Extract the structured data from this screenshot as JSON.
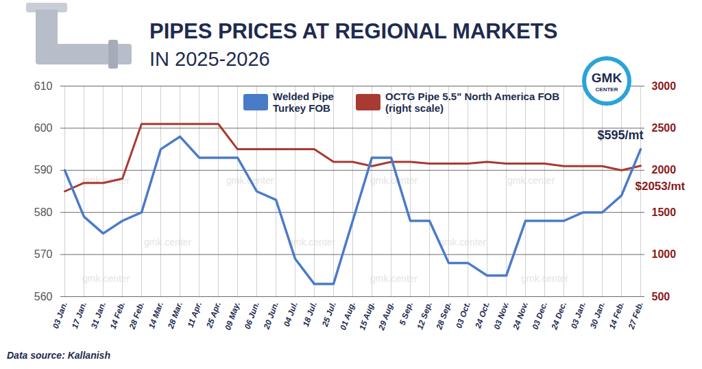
{
  "chart_data": {
    "type": "line",
    "title": "PIPES PRICES AT REGIONAL MARKETS",
    "subtitle": "IN 2025-2026",
    "source": "Data source: Kallanish",
    "logo": [
      "GMK",
      "CENTER"
    ],
    "watermark": "gmk.center",
    "categories": [
      "03 Jan.",
      "17 Jan.",
      "31 Jan.",
      "14 Feb.",
      "28 Feb.",
      "14 Mar.",
      "28 Mar.",
      "11 Apr.",
      "25 Apr.",
      "09 May.",
      "06 Jun.",
      "20 Jun.",
      "04 Jul.",
      "18 Jul.",
      "25 Jul.",
      "01 Aug.",
      "15 Aug.",
      "29 Aug.",
      "5 Sep.",
      "12 Sep.",
      "28 Sep.",
      "03 Oct.",
      "24 Oct.",
      "03 Nov.",
      "24 Nov.",
      "03 Dec.",
      "24 Dec.",
      "03 Jan.",
      "30 Jan.",
      "14 Feb.",
      "27 Feb."
    ],
    "series": [
      {
        "name": "Welded Pipe Turkey FOB",
        "color": "#4a7bc8",
        "values": [
          590,
          579,
          575,
          578,
          580,
          595,
          598,
          593,
          593,
          593,
          585,
          583,
          569,
          563,
          563,
          578,
          593,
          593,
          578,
          578,
          568,
          568,
          565,
          565,
          578,
          578,
          578,
          580,
          580,
          584,
          595
        ]
      },
      {
        "name": "OCTG Pipe 5.5\" North America FOB (right scale)",
        "color": "#a83a32",
        "axis": "y2",
        "values": [
          1750,
          1850,
          1850,
          1900,
          2550,
          2550,
          2550,
          2550,
          2550,
          2250,
          2250,
          2250,
          2250,
          2250,
          2100,
          2100,
          2050,
          2100,
          2100,
          2080,
          2080,
          2080,
          2100,
          2080,
          2080,
          2080,
          2050,
          2050,
          2050,
          2000,
          2053
        ]
      }
    ],
    "annotations": [
      {
        "text": "$595/mt",
        "series": "Welded Pipe Turkey FOB"
      },
      {
        "text": "$2053/mt",
        "series": "OCTG Pipe 5.5\" North America FOB (right scale)"
      }
    ],
    "ylim": [
      560,
      610
    ],
    "yticks": [
      560,
      570,
      580,
      590,
      600,
      610
    ],
    "y2lim": [
      500,
      3000
    ],
    "y2ticks": [
      500,
      1000,
      1500,
      2000,
      2500,
      3000
    ],
    "grid": true,
    "legend": "top"
  }
}
